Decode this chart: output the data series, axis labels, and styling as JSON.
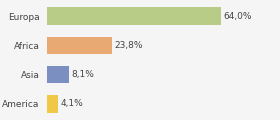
{
  "categories": [
    "America",
    "Asia",
    "Africa",
    "Europa"
  ],
  "values": [
    4.1,
    8.1,
    23.8,
    64.0
  ],
  "labels": [
    "4,1%",
    "8,1%",
    "23,8%",
    "64,0%"
  ],
  "bar_colors": [
    "#f0c848",
    "#7b8fc0",
    "#e8aa72",
    "#b8cc88"
  ],
  "background_color": "#f5f5f5",
  "plot_background": "#ffffff",
  "xlim": [
    0,
    85
  ],
  "bar_height": 0.6,
  "label_fontsize": 6.5,
  "tick_fontsize": 6.5
}
